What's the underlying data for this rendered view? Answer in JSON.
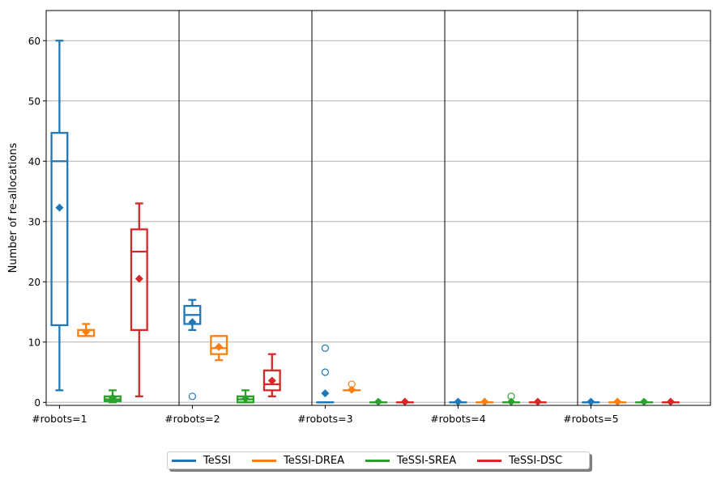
{
  "chart_data": {
    "type": "box",
    "ylabel": "Number of re-allocations",
    "ylim": [
      -0.5,
      65
    ],
    "yticks": [
      0,
      10,
      20,
      30,
      40,
      50,
      60
    ],
    "grid": "y",
    "legend_position": "bottom-center",
    "groups": [
      "#robots=1",
      "#robots=2",
      "#robots=3",
      "#robots=4",
      "#robots=5"
    ],
    "series": [
      {
        "name": "TeSSI",
        "color": "#1f77b4",
        "boxes": [
          {
            "whislo": 2,
            "q1": 12.8,
            "med": 40,
            "q3": 44.7,
            "whishi": 60,
            "mean": 32.3,
            "fliers": []
          },
          {
            "whislo": 12,
            "q1": 13,
            "med": 14.5,
            "q3": 16,
            "whishi": 17,
            "mean": 13.3,
            "fliers": [
              1
            ]
          },
          {
            "whislo": 0,
            "q1": 0,
            "med": 0,
            "q3": 0,
            "whishi": 0,
            "mean": 1.5,
            "fliers": [
              5,
              9
            ]
          },
          {
            "whislo": 0,
            "q1": 0,
            "med": 0,
            "q3": 0,
            "whishi": 0,
            "mean": 0.1,
            "fliers": []
          },
          {
            "whislo": 0,
            "q1": 0,
            "med": 0,
            "q3": 0,
            "whishi": 0,
            "mean": 0.1,
            "fliers": []
          }
        ]
      },
      {
        "name": "TeSSI-DREA",
        "color": "#ff7f0e",
        "boxes": [
          {
            "whislo": 11,
            "q1": 11,
            "med": 12,
            "q3": 12,
            "whishi": 13,
            "mean": 11.7,
            "fliers": []
          },
          {
            "whislo": 7,
            "q1": 8,
            "med": 9,
            "q3": 11,
            "whishi": 11,
            "mean": 9.2,
            "fliers": []
          },
          {
            "whislo": 2,
            "q1": 2,
            "med": 2,
            "q3": 2,
            "whishi": 2,
            "mean": 2.1,
            "fliers": [
              3
            ]
          },
          {
            "whislo": 0,
            "q1": 0,
            "med": 0,
            "q3": 0,
            "whishi": 0,
            "mean": 0.1,
            "fliers": []
          },
          {
            "whislo": 0,
            "q1": 0,
            "med": 0,
            "q3": 0,
            "whishi": 0,
            "mean": 0.1,
            "fliers": []
          }
        ]
      },
      {
        "name": "TeSSI-SREA",
        "color": "#2ca02c",
        "boxes": [
          {
            "whislo": 0,
            "q1": 0.2,
            "med": 0.5,
            "q3": 1,
            "whishi": 2,
            "mean": 0.8,
            "fliers": []
          },
          {
            "whislo": 0,
            "q1": 0,
            "med": 0.5,
            "q3": 1,
            "whishi": 2,
            "mean": 0.6,
            "fliers": []
          },
          {
            "whislo": 0,
            "q1": 0,
            "med": 0,
            "q3": 0,
            "whishi": 0,
            "mean": 0.1,
            "fliers": []
          },
          {
            "whislo": 0,
            "q1": 0,
            "med": 0,
            "q3": 0,
            "whishi": 0,
            "mean": 0.1,
            "fliers": [
              1
            ]
          },
          {
            "whislo": 0,
            "q1": 0,
            "med": 0,
            "q3": 0,
            "whishi": 0,
            "mean": 0.1,
            "fliers": []
          }
        ]
      },
      {
        "name": "TeSSI-DSC",
        "color": "#d62728",
        "boxes": [
          {
            "whislo": 1,
            "q1": 12,
            "med": 25,
            "q3": 28.7,
            "whishi": 33,
            "mean": 20.5,
            "fliers": []
          },
          {
            "whislo": 1,
            "q1": 2,
            "med": 3,
            "q3": 5.3,
            "whishi": 8,
            "mean": 3.6,
            "fliers": []
          },
          {
            "whislo": 0,
            "q1": 0,
            "med": 0,
            "q3": 0,
            "whishi": 0,
            "mean": 0.1,
            "fliers": []
          },
          {
            "whislo": 0,
            "q1": 0,
            "med": 0,
            "q3": 0,
            "whishi": 0,
            "mean": 0.1,
            "fliers": []
          },
          {
            "whislo": 0,
            "q1": 0,
            "med": 0,
            "q3": 0,
            "whishi": 0,
            "mean": 0.1,
            "fliers": []
          }
        ]
      }
    ]
  }
}
